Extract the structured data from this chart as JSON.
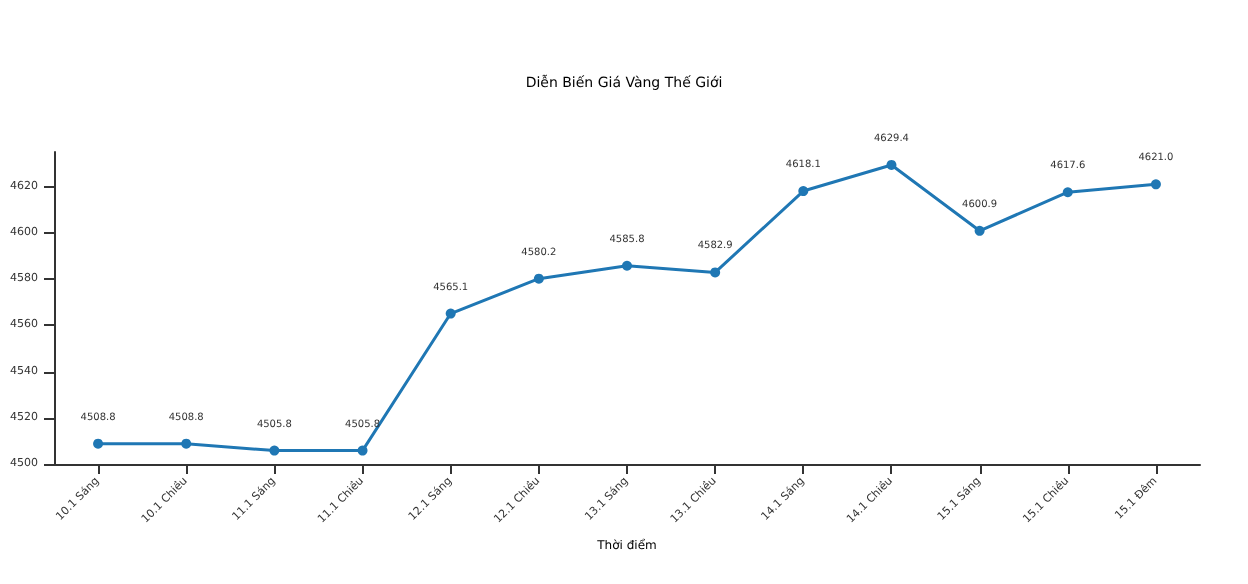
{
  "chart_data": {
    "type": "line",
    "title": "Diễn Biến Giá Vàng Thế Giới",
    "xlabel": "Thời điểm",
    "categories": [
      "10.1 Sáng",
      "10.1 Chiều",
      "11.1 Sáng",
      "11.1 Chiều",
      "12.1 Sáng",
      "12.1 Chiều",
      "13.1 Sáng",
      "13.1 Chiều",
      "14.1 Sáng",
      "14.1 Chiều",
      "15.1 Sáng",
      "15.1 Chiều",
      "15.1 Đêm"
    ],
    "series": [
      {
        "color": "#1f77b4",
        "values": [
          4508.8,
          4508.8,
          4505.8,
          4505.8,
          4565.1,
          4580.2,
          4585.8,
          4582.9,
          4618.1,
          4629.4,
          4600.9,
          4617.6,
          4621.0
        ],
        "value_labels": [
          "4508.8",
          "4508.8",
          "4505.8",
          "4505.8",
          "4565.1",
          "4580.2",
          "4585.8",
          "4582.9",
          "4618.1",
          "4629.4",
          "4600.9",
          "4617.6",
          "4621.0"
        ]
      }
    ],
    "ylim": [
      4500,
      4635
    ],
    "yticks": [
      4500,
      4520,
      4540,
      4560,
      4580,
      4600,
      4620
    ],
    "marker": "circle",
    "line_style": "solid",
    "grid": false
  }
}
